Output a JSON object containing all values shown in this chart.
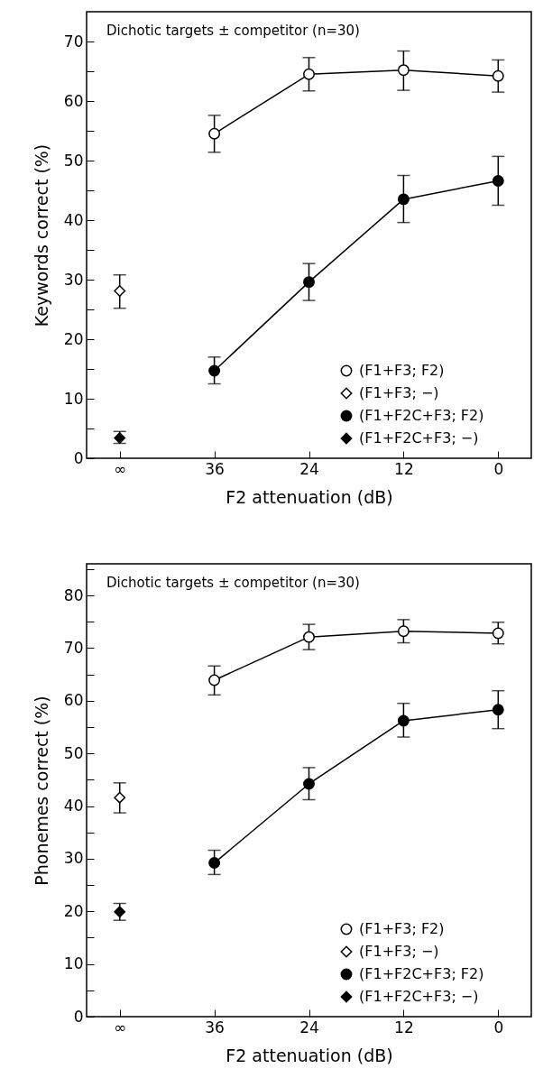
{
  "chart_data": [
    {
      "type": "line",
      "xlabel": "F2 attenuation (dB)",
      "ylabel": "Keywords correct (%)",
      "categories": [
        "∞",
        "36",
        "24",
        "12",
        "0"
      ],
      "ylim": [
        0,
        75
      ],
      "yticks": [
        0,
        {
          "value": 5,
          "label": null
        },
        10,
        {
          "value": 15,
          "label": null
        },
        20,
        {
          "value": 25,
          "label": null
        },
        30,
        {
          "value": 35,
          "label": null
        },
        40,
        {
          "value": 45,
          "label": null
        },
        50,
        {
          "value": 55,
          "label": null
        },
        60,
        {
          "value": 65,
          "label": null
        },
        70
      ],
      "annotations": [
        "Dichotic targets ± competitor (n=30)"
      ],
      "legend": "bottom right",
      "grid": false,
      "series": [
        {
          "name": "(F1+F3; F2)",
          "type": "line",
          "marker": "circle",
          "color": "#ffffff",
          "values": [
            null,
            54.5,
            64.5,
            65.2,
            64.2
          ],
          "errors": [
            null,
            [
              51.4,
              57.6
            ],
            [
              61.7,
              67.3
            ],
            [
              61.8,
              68.4
            ],
            [
              61.5,
              66.9
            ]
          ]
        },
        {
          "name": "(F1+F3; −)",
          "type": "scatter",
          "marker": "diamond",
          "color": "#ffffff",
          "x": [
            "∞"
          ],
          "values": [
            28.1
          ],
          "errors": [
            [
              25.2,
              30.8
            ]
          ]
        },
        {
          "name": "(F1+F2C+F3; F2)",
          "type": "line",
          "marker": "circle",
          "color": "#000000",
          "values": [
            null,
            14.7,
            29.6,
            43.5,
            46.6
          ],
          "errors": [
            null,
            [
              12.5,
              17.0
            ],
            [
              26.5,
              32.7
            ],
            [
              39.6,
              47.5
            ],
            [
              42.5,
              50.7
            ]
          ]
        },
        {
          "name": "(F1+F2C+F3; −)",
          "type": "scatter",
          "marker": "diamond",
          "color": "#000000",
          "x": [
            "∞"
          ],
          "values": [
            3.4
          ],
          "errors": [
            [
              2.5,
              4.5
            ]
          ]
        }
      ]
    },
    {
      "type": "line",
      "xlabel": "F2 attenuation (dB)",
      "ylabel": "Phonemes correct (%)",
      "categories": [
        "∞",
        "36",
        "24",
        "12",
        "0"
      ],
      "ylim": [
        0,
        86
      ],
      "yticks": [
        0,
        {
          "value": 5,
          "label": null
        },
        10,
        {
          "value": 15,
          "label": null
        },
        20,
        {
          "value": 25,
          "label": null
        },
        30,
        {
          "value": 35,
          "label": null
        },
        40,
        {
          "value": 45,
          "label": null
        },
        50,
        {
          "value": 55,
          "label": null
        },
        60,
        {
          "value": 65,
          "label": null
        },
        70,
        {
          "value": 75,
          "label": null
        },
        80,
        {
          "value": 85,
          "label": null
        }
      ],
      "annotations": [
        "Dichotic targets ± competitor (n=30)"
      ],
      "legend": "bottom right",
      "grid": false,
      "series": [
        {
          "name": "(F1+F3; F2)",
          "type": "line",
          "marker": "circle",
          "color": "#ffffff",
          "values": [
            null,
            63.9,
            72.1,
            73.2,
            72.8
          ],
          "errors": [
            null,
            [
              61.1,
              66.6
            ],
            [
              69.7,
              74.5
            ],
            [
              71.0,
              75.4
            ],
            [
              70.8,
              74.9
            ]
          ]
        },
        {
          "name": "(F1+F3; −)",
          "type": "scatter",
          "marker": "diamond",
          "color": "#ffffff",
          "x": [
            "∞"
          ],
          "values": [
            41.6
          ],
          "errors": [
            [
              38.7,
              44.4
            ]
          ]
        },
        {
          "name": "(F1+F2C+F3; F2)",
          "type": "line",
          "marker": "circle",
          "color": "#000000",
          "values": [
            null,
            29.2,
            44.2,
            56.2,
            58.3
          ],
          "errors": [
            null,
            [
              27.0,
              31.6
            ],
            [
              41.2,
              47.3
            ],
            [
              53.1,
              59.5
            ],
            [
              54.7,
              61.9
            ]
          ]
        },
        {
          "name": "(F1+F2C+F3; −)",
          "type": "scatter",
          "marker": "diamond",
          "color": "#000000",
          "x": [
            "∞"
          ],
          "values": [
            19.9
          ],
          "errors": [
            [
              18.3,
              21.5
            ]
          ]
        }
      ]
    }
  ]
}
